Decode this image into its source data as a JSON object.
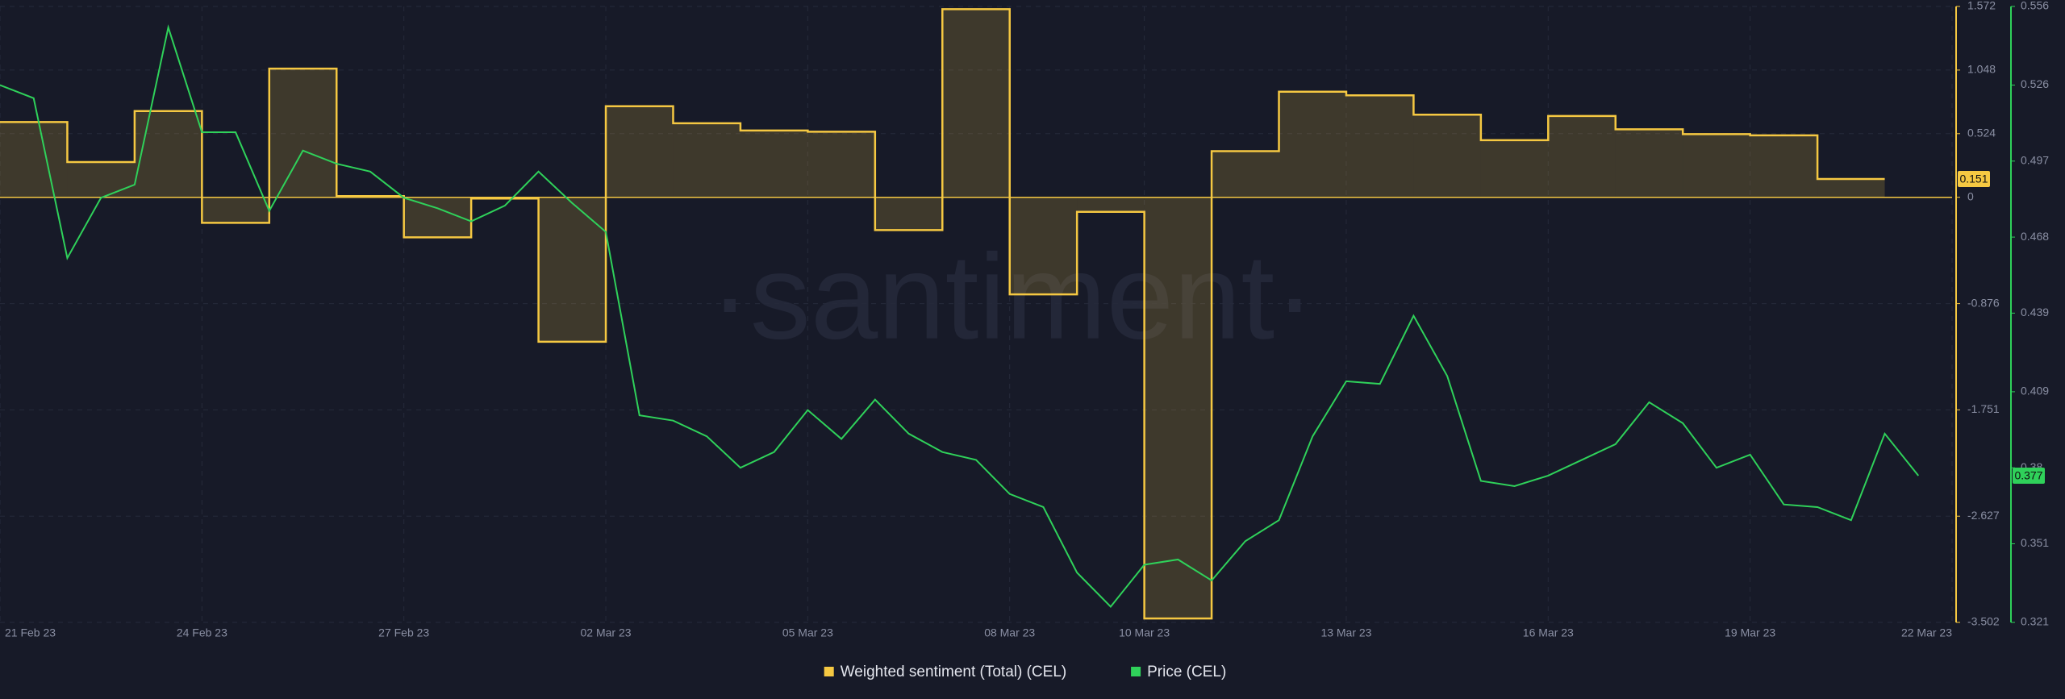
{
  "chart_data": {
    "type": "line",
    "watermark": "·santiment·",
    "xlim": [
      "2023-02-21",
      "2023-03-22"
    ],
    "xticks": [
      {
        "value": "2023-02-21",
        "label": "21 Feb 23"
      },
      {
        "value": "2023-02-24",
        "label": "24 Feb 23"
      },
      {
        "value": "2023-02-27",
        "label": "27 Feb 23"
      },
      {
        "value": "2023-03-02",
        "label": "02 Mar 23"
      },
      {
        "value": "2023-03-05",
        "label": "05 Mar 23"
      },
      {
        "value": "2023-03-08",
        "label": "08 Mar 23"
      },
      {
        "value": "2023-03-10",
        "label": "10 Mar 23"
      },
      {
        "value": "2023-03-13",
        "label": "13 Mar 23"
      },
      {
        "value": "2023-03-16",
        "label": "16 Mar 23"
      },
      {
        "value": "2023-03-19",
        "label": "19 Mar 23"
      },
      {
        "value": "2023-03-22",
        "label": "22 Mar 23"
      }
    ],
    "ylim": [
      -3.502,
      1.572
    ],
    "yticks": [
      -3.502,
      -2.627,
      -1.751,
      -0.876,
      0,
      0.524,
      1.048,
      1.572
    ],
    "y2lim": [
      0.321,
      0.556
    ],
    "y2ticks": [
      0.321,
      0.351,
      0.38,
      0.409,
      0.439,
      0.468,
      0.497,
      0.526,
      0.556
    ],
    "grid": true,
    "series": [
      {
        "name": "Weighted sentiment (Total) (CEL)",
        "color": "#f5c842",
        "style": "step",
        "last_value": 0.151,
        "x": [
          "2023-02-21",
          "2023-02-22",
          "2023-02-23",
          "2023-02-24",
          "2023-02-25",
          "2023-02-26",
          "2023-02-27",
          "2023-02-28",
          "2023-03-01",
          "2023-03-02",
          "2023-03-03",
          "2023-03-04",
          "2023-03-05",
          "2023-03-06",
          "2023-03-07",
          "2023-03-08",
          "2023-03-09",
          "2023-03-10",
          "2023-03-11",
          "2023-03-12",
          "2023-03-13",
          "2023-03-14",
          "2023-03-15",
          "2023-03-16",
          "2023-03-17",
          "2023-03-18",
          "2023-03-19",
          "2023-03-20"
        ],
        "values": [
          0.62,
          0.29,
          0.71,
          -0.21,
          1.06,
          0.01,
          -0.33,
          -0.01,
          -1.19,
          0.75,
          0.61,
          0.55,
          0.54,
          -0.27,
          1.55,
          -0.8,
          -0.12,
          -3.47,
          0.38,
          0.87,
          0.84,
          0.68,
          0.47,
          0.67,
          0.56,
          0.52,
          0.51,
          0.151
        ]
      },
      {
        "name": "Price (CEL)",
        "color": "#2fd15a",
        "axis": "y2",
        "style": "line",
        "last_value": 0.377,
        "x": [
          "2023-02-21 00:00",
          "2023-02-21 12:00",
          "2023-02-22 00:00",
          "2023-02-22 12:00",
          "2023-02-23 00:00",
          "2023-02-23 12:00",
          "2023-02-24 00:00",
          "2023-02-24 12:00",
          "2023-02-25 00:00",
          "2023-02-25 12:00",
          "2023-02-26 00:00",
          "2023-02-26 12:00",
          "2023-02-27 00:00",
          "2023-02-27 12:00",
          "2023-02-28 00:00",
          "2023-02-28 12:00",
          "2023-03-01 00:00",
          "2023-03-01 12:00",
          "2023-03-02 00:00",
          "2023-03-02 12:00",
          "2023-03-03 00:00",
          "2023-03-03 12:00",
          "2023-03-04 00:00",
          "2023-03-04 12:00",
          "2023-03-05 00:00",
          "2023-03-05 12:00",
          "2023-03-06 00:00",
          "2023-03-06 12:00",
          "2023-03-07 00:00",
          "2023-03-07 12:00",
          "2023-03-08 00:00",
          "2023-03-08 12:00",
          "2023-03-09 00:00",
          "2023-03-09 12:00",
          "2023-03-10 00:00",
          "2023-03-10 12:00",
          "2023-03-11 00:00",
          "2023-03-11 12:00",
          "2023-03-12 00:00",
          "2023-03-12 12:00",
          "2023-03-13 00:00",
          "2023-03-13 12:00",
          "2023-03-14 00:00",
          "2023-03-14 12:00",
          "2023-03-15 00:00",
          "2023-03-15 12:00",
          "2023-03-16 00:00",
          "2023-03-16 12:00",
          "2023-03-17 00:00",
          "2023-03-17 12:00",
          "2023-03-18 00:00",
          "2023-03-18 12:00",
          "2023-03-19 00:00",
          "2023-03-19 12:00",
          "2023-03-20 00:00",
          "2023-03-20 12:00",
          "2023-03-21 00:00",
          "2023-03-21 12:00"
        ],
        "values": [
          0.526,
          0.521,
          0.46,
          0.483,
          0.488,
          0.548,
          0.508,
          0.508,
          0.478,
          0.501,
          0.496,
          0.493,
          0.483,
          0.479,
          0.474,
          0.48,
          0.493,
          0.481,
          0.47,
          0.4,
          0.398,
          0.392,
          0.38,
          0.386,
          0.402,
          0.391,
          0.406,
          0.393,
          0.386,
          0.383,
          0.37,
          0.365,
          0.34,
          0.327,
          0.343,
          0.345,
          0.337,
          0.352,
          0.36,
          0.392,
          0.413,
          0.412,
          0.438,
          0.415,
          0.375,
          0.373,
          0.377,
          0.383,
          0.389,
          0.405,
          0.397,
          0.38,
          0.385,
          0.366,
          0.365,
          0.36,
          0.393,
          0.377
        ]
      }
    ]
  }
}
